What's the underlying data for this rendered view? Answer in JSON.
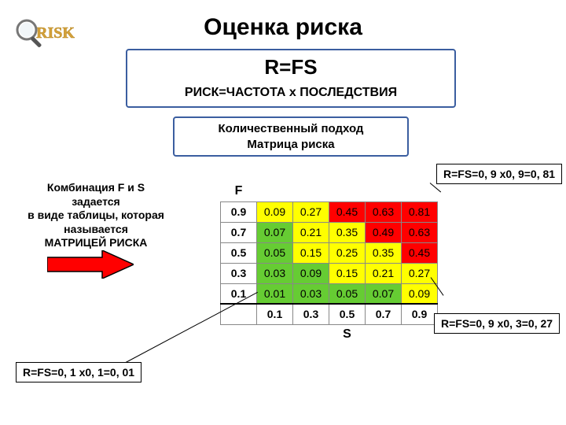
{
  "title": "Оценка риска",
  "formula": {
    "main": "R=FS",
    "sub": "РИСК=ЧАСТОТА х ПОСЛЕДСТВИЯ"
  },
  "approach": {
    "line1": "Количественный подход",
    "line2": "Матрица риска"
  },
  "side": {
    "l1": "Комбинация F и S",
    "l2": "задается",
    "l3": "в виде таблицы, которая",
    "l4": "называется",
    "l5": "МАТРИЦЕЙ РИСКА"
  },
  "matrix": {
    "F_label": "F",
    "S_label": "S",
    "row_labels": [
      "0.9",
      "0.7",
      "0.5",
      "0.3",
      "0.1"
    ],
    "col_labels": [
      "0.1",
      "0.3",
      "0.5",
      "0.7",
      "0.9"
    ],
    "cells": [
      [
        {
          "v": "0.09",
          "c": "#ffff00"
        },
        {
          "v": "0.27",
          "c": "#ffff00"
        },
        {
          "v": "0.45",
          "c": "#ff0000"
        },
        {
          "v": "0.63",
          "c": "#ff0000"
        },
        {
          "v": "0.81",
          "c": "#ff0000"
        }
      ],
      [
        {
          "v": "0.07",
          "c": "#66cc33"
        },
        {
          "v": "0.21",
          "c": "#ffff00"
        },
        {
          "v": "0.35",
          "c": "#ffff00"
        },
        {
          "v": "0.49",
          "c": "#ff0000"
        },
        {
          "v": "0.63",
          "c": "#ff0000"
        }
      ],
      [
        {
          "v": "0.05",
          "c": "#66cc33"
        },
        {
          "v": "0.15",
          "c": "#ffff00"
        },
        {
          "v": "0.25",
          "c": "#ffff00"
        },
        {
          "v": "0.35",
          "c": "#ffff00"
        },
        {
          "v": "0.45",
          "c": "#ff0000"
        }
      ],
      [
        {
          "v": "0.03",
          "c": "#66cc33"
        },
        {
          "v": "0.09",
          "c": "#66cc33"
        },
        {
          "v": "0.15",
          "c": "#ffff00"
        },
        {
          "v": "0.21",
          "c": "#ffff00"
        },
        {
          "v": "0.27",
          "c": "#ffff00"
        }
      ],
      [
        {
          "v": "0.01",
          "c": "#66cc33"
        },
        {
          "v": "0.03",
          "c": "#66cc33"
        },
        {
          "v": "0.05",
          "c": "#66cc33"
        },
        {
          "v": "0.07",
          "c": "#66cc33"
        },
        {
          "v": "0.09",
          "c": "#ffff00"
        }
      ]
    ]
  },
  "callouts": {
    "c1": "R=FS=0, 9 x0, 9=0, 81",
    "c2": "R=FS=0, 9 x0, 3=0, 27",
    "c3": "R=FS=0, 1 x0, 1=0, 01"
  },
  "colors": {
    "border_box": "#3b5ea0",
    "arrow_fill": "#ff0000",
    "arrow_stroke": "#000000",
    "green": "#66cc33",
    "yellow": "#ffff00",
    "red": "#ff0000",
    "grid": "#888888",
    "risk_text": "#d4a13a",
    "magnifier": "#777777"
  }
}
